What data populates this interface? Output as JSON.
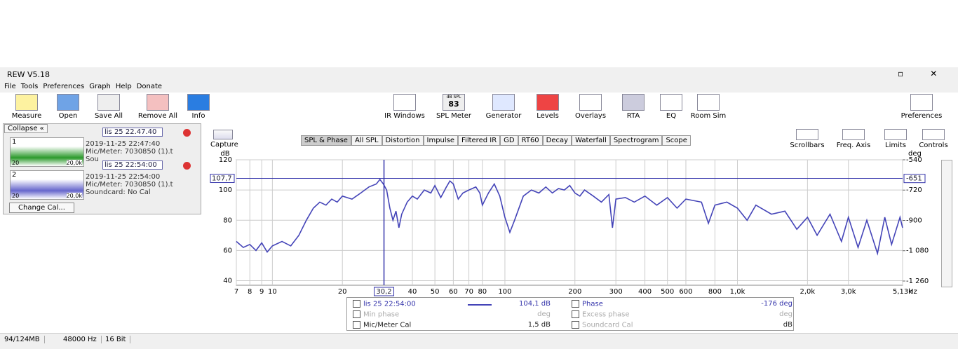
{
  "window": {
    "title": "REW V5.18"
  },
  "menu": [
    "File",
    "Tools",
    "Preferences",
    "Graph",
    "Help",
    "Donate"
  ],
  "toolbar_left": [
    "Measure",
    "Open",
    "Save All",
    "Remove All",
    "Info"
  ],
  "toolbar_center": [
    "IR Windows",
    "SPL Meter",
    "Generator",
    "Levels",
    "Overlays",
    "RTA",
    "EQ",
    "Room Sim"
  ],
  "spl_icon": {
    "top": "dB SPL",
    "value": "83"
  },
  "toolbar_right": [
    "Preferences"
  ],
  "measurements": {
    "collapse": "Collapse",
    "items": [
      {
        "name": "lis 25 22.47.40",
        "number": "1",
        "date": "2019-11-25 22:47:40",
        "mic": "Mic/Meter: 7030850 (1).t",
        "soundcard": "Sou",
        "thumb_low": "20",
        "thumb_high": "20,0k"
      },
      {
        "name": "lis 25 22:54:00",
        "number": "2",
        "date": "2019-11-25 22:54:00",
        "mic": "Mic/Meter: 7030850 (1).t",
        "soundcard": "Soundcard: No Cal",
        "thumb_low": "20",
        "thumb_high": "20,0k"
      }
    ],
    "change_cal": "Change Cal..."
  },
  "capture": "Capture",
  "graph_tabs": [
    "SPL & Phase",
    "All SPL",
    "Distortion",
    "Impulse",
    "Filtered IR",
    "GD",
    "RT60",
    "Decay",
    "Waterfall",
    "Spectrogram",
    "Scope"
  ],
  "graph_controls": [
    "Scrollbars",
    "Freq. Axis",
    "Limits",
    "Controls"
  ],
  "chart_data": {
    "type": "line",
    "log_x": true,
    "grid": true,
    "x_unit": "Hz",
    "y_label": "dB",
    "y2_label": "deg",
    "x": [
      7,
      7.5,
      8,
      8.5,
      9,
      9.5,
      10,
      11,
      12,
      13,
      14,
      15,
      16,
      17,
      18,
      19,
      20,
      22,
      24,
      26,
      28,
      29,
      30,
      31,
      32,
      33,
      34,
      35,
      36,
      38,
      40,
      42,
      45,
      48,
      50,
      53,
      56,
      58,
      60,
      63,
      66,
      70,
      75,
      78,
      80,
      85,
      90,
      95,
      100,
      105,
      110,
      120,
      130,
      140,
      150,
      160,
      170,
      180,
      190,
      200,
      210,
      220,
      240,
      260,
      280,
      290,
      300,
      330,
      360,
      400,
      450,
      500,
      550,
      600,
      700,
      750,
      800,
      900,
      1000,
      1100,
      1200,
      1400,
      1600,
      1800,
      2000,
      2200,
      2500,
      2800,
      3000,
      3300,
      3600,
      4000,
      4300,
      4600,
      5000,
      5130
    ],
    "series": [
      {
        "name": "lis 25 22:54:00",
        "color": "#4444b8",
        "values": [
          66,
          62,
          64,
          60,
          65,
          59,
          63,
          66,
          63,
          70,
          80,
          88,
          92,
          90,
          94,
          92,
          96,
          94,
          98,
          102,
          104,
          107,
          104,
          100,
          88,
          80,
          86,
          75,
          84,
          92,
          96,
          94,
          100,
          98,
          103,
          95,
          102,
          106,
          104,
          94,
          98,
          100,
          102,
          98,
          90,
          98,
          104,
          96,
          82,
          72,
          80,
          96,
          100,
          98,
          102,
          98,
          101,
          100,
          103,
          98,
          96,
          100,
          96,
          92,
          97,
          75,
          94,
          95,
          92,
          96,
          90,
          95,
          88,
          94,
          92,
          78,
          90,
          92,
          88,
          80,
          90,
          84,
          86,
          74,
          82,
          70,
          84,
          66,
          82,
          62,
          80,
          58,
          82,
          64,
          82,
          75
        ]
      }
    ],
    "xlim": [
      7,
      5130
    ],
    "ylim": [
      37,
      120
    ],
    "y2lim": [
      -1285,
      -540
    ],
    "xticks": [
      7,
      8,
      9,
      10,
      20,
      40,
      50,
      60,
      70,
      80,
      100,
      200,
      300,
      400,
      500,
      600,
      800,
      {
        "value": 1000,
        "label": "1,0k"
      },
      {
        "value": 2000,
        "label": "2,0k"
      },
      {
        "value": 3000,
        "label": "3,0k"
      },
      {
        "value": 5130,
        "label": "5,13k"
      }
    ],
    "yticks": [
      40,
      60,
      80,
      100,
      120
    ],
    "y2ticks": [
      -540,
      -720,
      -900,
      {
        "value": -1080,
        "label": "-1 080"
      },
      {
        "value": -1260,
        "label": "-1 260"
      }
    ],
    "cursor": {
      "x": {
        "value": 30.2,
        "label": "30,2"
      },
      "y": {
        "value": 107.7,
        "label": "107,7"
      },
      "y2": -651
    }
  },
  "legend": {
    "rows": [
      [
        "lis 25 22:54:00",
        "104,1 dB",
        "Phase",
        "-176 deg"
      ],
      [
        "Min phase",
        "deg",
        "Excess phase",
        "deg"
      ],
      [
        "Mic/Meter Cal",
        "1,5 dB",
        "Soundcard Cal",
        "dB"
      ]
    ]
  },
  "status": [
    "94/124MB",
    "48000 Hz",
    "16 Bit"
  ]
}
